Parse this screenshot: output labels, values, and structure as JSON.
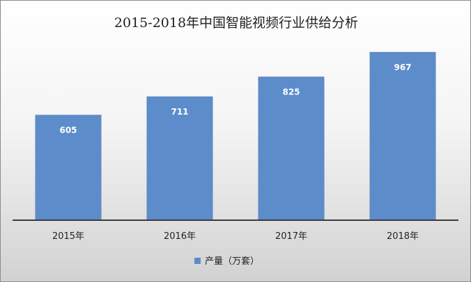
{
  "chart_data": {
    "type": "bar",
    "title": "2015-2018年中国智能视频行业供给分析",
    "categories": [
      "2015年",
      "2016年",
      "2017年",
      "2018年"
    ],
    "series": [
      {
        "name": "产量（万套）",
        "values": [
          605,
          711,
          825,
          967
        ],
        "color": "#5d8ccb"
      }
    ],
    "data_labels": [
      "605",
      "711",
      "825",
      "967"
    ],
    "ylim": [
      0,
      1000
    ],
    "grid": false,
    "legend": "bottom",
    "colors": {
      "bar": "#5d8ccb",
      "background_top": "#ffffff",
      "background_bottom": "#d2d2d2"
    }
  }
}
